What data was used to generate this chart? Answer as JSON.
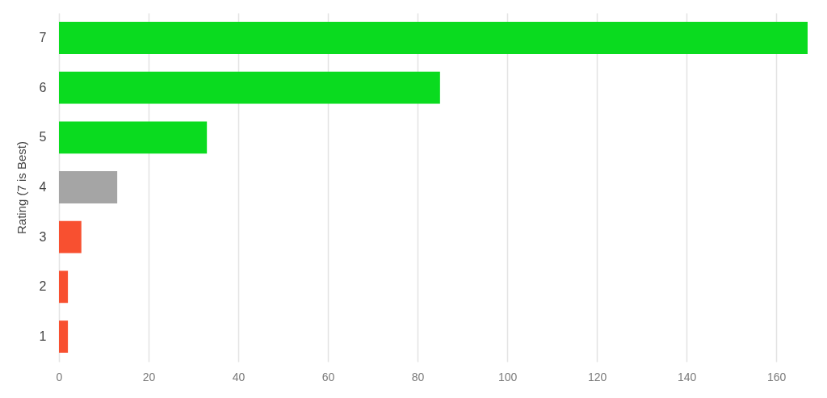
{
  "chart_data": {
    "type": "bar",
    "orientation": "horizontal",
    "ylabel": "Rating (7 is Best)",
    "categories": [
      "7",
      "6",
      "5",
      "4",
      "3",
      "2",
      "1"
    ],
    "values": [
      167,
      85,
      33,
      13,
      5,
      2,
      2
    ],
    "colors": [
      "#0adb1f",
      "#0adb1f",
      "#0adb1f",
      "#a5a5a5",
      "#f85030",
      "#f85030",
      "#f85030"
    ],
    "xlim": [
      0,
      167
    ],
    "xticks": [
      0,
      20,
      40,
      60,
      80,
      100,
      120,
      140,
      160
    ],
    "grid": "x"
  }
}
